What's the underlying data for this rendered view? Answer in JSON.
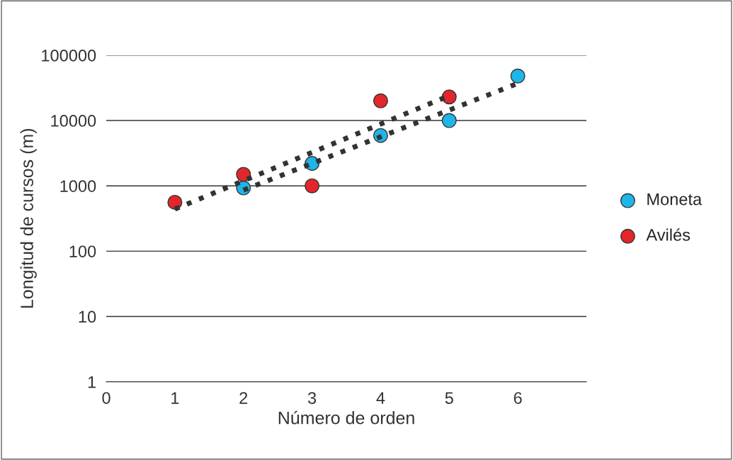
{
  "chart_data": {
    "type": "scatter",
    "xlabel": "Número de orden",
    "ylabel": "Longitud de cursos (m)",
    "log": "y",
    "grid": "y",
    "legend": "right",
    "marker": "circle",
    "xlim": [
      0,
      7
    ],
    "xticks": [
      0,
      1,
      2,
      3,
      4,
      5,
      6
    ],
    "ylim": [
      1,
      100000
    ],
    "yticks": [
      1,
      10,
      100,
      1000,
      10000,
      100000
    ],
    "series": [
      {
        "name": "Moneta",
        "color": "#1fb5e8",
        "x": [
          2,
          3,
          4,
          5,
          6
        ],
        "values": [
          930,
          2200,
          5900,
          10000,
          48000
        ]
      },
      {
        "name": "Avilés",
        "color": "#e3262b",
        "x": [
          1,
          2,
          3,
          4,
          5
        ],
        "values": [
          560,
          1500,
          1000,
          20000,
          23000
        ]
      },
      {
        "type": "line",
        "color": "#333333",
        "line_style": "dotted",
        "marker": "none",
        "x": [
          1,
          5
        ],
        "values": [
          440,
          24000
        ]
      },
      {
        "type": "line",
        "color": "#333333",
        "line_style": "dotted",
        "marker": "none",
        "x": [
          2,
          6
        ],
        "values": [
          860,
          37000
        ]
      }
    ]
  }
}
